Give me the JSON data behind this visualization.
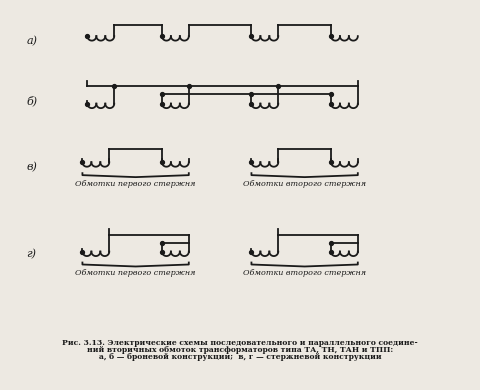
{
  "bg_color": "#ede9e2",
  "line_color": "#1a1a1a",
  "label_a": "а)",
  "label_b": "б)",
  "label_v": "в)",
  "label_g": "г)",
  "caption_line1": "Рис. 3.13. Электрические схемы последовательного и параллельного соедине-",
  "caption_line2": "ний вторичных обмоток трансформаторов типа ТА, ТН, ТАН и ТПП:",
  "caption_line3": "а, б — броневой конструкции;  в, г — стержневой конструкции",
  "text_first_core": "Обмотки первого стержня",
  "text_second_core": "Обмотки второго стержня"
}
